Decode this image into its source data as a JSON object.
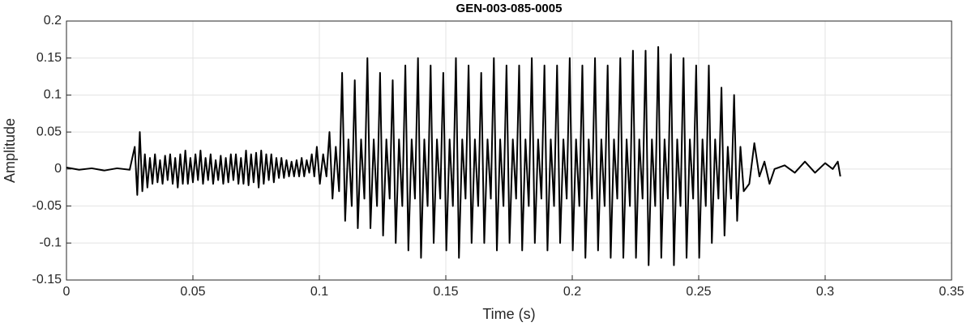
{
  "chart_data": {
    "type": "line",
    "title": "GEN-003-085-0005",
    "x_label": "Time (s)",
    "y_label": "Amplitude",
    "xlim": [
      0,
      0.35
    ],
    "xticks": [
      0,
      0.05,
      0.1,
      0.15,
      0.2,
      0.25,
      0.3,
      0.35
    ],
    "ylim": [
      -0.15,
      0.2
    ],
    "yticks": [
      -0.15,
      -0.1,
      -0.05,
      0,
      0.05,
      0.1,
      0.15,
      0.2
    ],
    "grid": true,
    "series": [
      {
        "color": "#000000",
        "x": [
          0,
          0.005,
          0.01,
          0.015,
          0.02,
          0.025,
          0.027,
          0.028,
          0.029,
          0.03,
          0.031,
          0.032,
          0.033,
          0.034,
          0.035,
          0.036,
          0.037,
          0.038,
          0.039,
          0.04,
          0.041,
          0.042,
          0.043,
          0.044,
          0.045,
          0.046,
          0.047,
          0.048,
          0.049,
          0.05,
          0.051,
          0.052,
          0.053,
          0.054,
          0.055,
          0.056,
          0.057,
          0.058,
          0.059,
          0.06,
          0.061,
          0.062,
          0.063,
          0.064,
          0.065,
          0.066,
          0.067,
          0.068,
          0.069,
          0.07,
          0.071,
          0.072,
          0.073,
          0.074,
          0.075,
          0.076,
          0.077,
          0.078,
          0.079,
          0.08,
          0.081,
          0.082,
          0.083,
          0.084,
          0.085,
          0.086,
          0.087,
          0.088,
          0.089,
          0.09,
          0.091,
          0.092,
          0.093,
          0.094,
          0.095,
          0.096,
          0.097,
          0.098,
          0.099,
          0.1002,
          0.1015,
          0.1028,
          0.104,
          0.1052,
          0.1065,
          0.1078,
          0.109,
          0.1102,
          0.1115,
          0.1128,
          0.114,
          0.1152,
          0.1165,
          0.1178,
          0.119,
          0.1202,
          0.1215,
          0.1228,
          0.124,
          0.1252,
          0.1265,
          0.1278,
          0.129,
          0.1302,
          0.1315,
          0.1328,
          0.134,
          0.1352,
          0.1365,
          0.1378,
          0.139,
          0.1402,
          0.1415,
          0.1428,
          0.144,
          0.1452,
          0.1465,
          0.1478,
          0.149,
          0.1502,
          0.1515,
          0.1528,
          0.154,
          0.1552,
          0.1565,
          0.1578,
          0.159,
          0.1602,
          0.1615,
          0.1628,
          0.164,
          0.1652,
          0.1665,
          0.1678,
          0.169,
          0.1702,
          0.1715,
          0.1728,
          0.174,
          0.1752,
          0.1765,
          0.1778,
          0.179,
          0.1802,
          0.1815,
          0.1828,
          0.184,
          0.1852,
          0.1865,
          0.1878,
          0.189,
          0.1902,
          0.1915,
          0.1928,
          0.194,
          0.1952,
          0.1965,
          0.1978,
          0.199,
          0.2002,
          0.2015,
          0.2028,
          0.204,
          0.2052,
          0.2065,
          0.2078,
          0.209,
          0.2102,
          0.2115,
          0.2128,
          0.214,
          0.2152,
          0.2165,
          0.2178,
          0.219,
          0.2202,
          0.2215,
          0.2228,
          0.224,
          0.2252,
          0.2265,
          0.2278,
          0.229,
          0.2302,
          0.2315,
          0.2328,
          0.234,
          0.2352,
          0.2365,
          0.2378,
          0.239,
          0.2402,
          0.2415,
          0.2428,
          0.244,
          0.2452,
          0.2465,
          0.2478,
          0.249,
          0.2502,
          0.2515,
          0.2528,
          0.254,
          0.2552,
          0.2565,
          0.2578,
          0.259,
          0.2602,
          0.2615,
          0.2628,
          0.264,
          0.2652,
          0.2665,
          0.2678,
          0.27,
          0.272,
          0.274,
          0.276,
          0.278,
          0.28,
          0.284,
          0.288,
          0.292,
          0.296,
          0.3,
          0.303,
          0.305,
          0.306
        ],
        "values": [
          0.002,
          -0.001,
          0.001,
          -0.002,
          0.001,
          -0.001,
          0.03,
          -0.035,
          0.05,
          -0.03,
          0.02,
          -0.025,
          0.015,
          -0.02,
          0.02,
          -0.018,
          0.012,
          -0.02,
          0.018,
          -0.015,
          0.02,
          -0.02,
          0.015,
          -0.025,
          0.02,
          -0.02,
          0.025,
          -0.02,
          0.015,
          -0.018,
          0.02,
          -0.015,
          0.025,
          -0.02,
          0.015,
          -0.015,
          0.02,
          -0.02,
          0.012,
          -0.015,
          0.018,
          -0.02,
          0.015,
          -0.018,
          0.02,
          -0.015,
          0.02,
          -0.02,
          0.015,
          -0.02,
          0.025,
          -0.022,
          0.02,
          -0.018,
          0.022,
          -0.025,
          0.025,
          -0.02,
          0.02,
          -0.015,
          0.02,
          -0.018,
          0.015,
          -0.012,
          0.015,
          -0.012,
          0.012,
          -0.01,
          0.01,
          -0.01,
          0.012,
          -0.01,
          0.015,
          -0.01,
          0.012,
          -0.005,
          0.02,
          -0.01,
          0.03,
          -0.02,
          0.02,
          -0.01,
          0.05,
          -0.04,
          0.03,
          -0.03,
          0.13,
          -0.07,
          0.04,
          -0.05,
          0.12,
          -0.08,
          0.04,
          -0.04,
          0.15,
          -0.08,
          0.04,
          -0.05,
          0.13,
          -0.09,
          0.04,
          -0.04,
          0.12,
          -0.1,
          0.04,
          -0.05,
          0.14,
          -0.11,
          0.04,
          -0.04,
          0.15,
          -0.12,
          0.04,
          -0.05,
          0.14,
          -0.1,
          0.04,
          -0.04,
          0.13,
          -0.11,
          0.04,
          -0.05,
          0.15,
          -0.12,
          0.04,
          -0.04,
          0.14,
          -0.1,
          0.04,
          -0.05,
          0.13,
          -0.1,
          0.04,
          -0.04,
          0.15,
          -0.11,
          0.04,
          -0.05,
          0.14,
          -0.1,
          0.04,
          -0.04,
          0.14,
          -0.11,
          0.04,
          -0.05,
          0.15,
          -0.1,
          0.04,
          -0.04,
          0.14,
          -0.11,
          0.04,
          -0.05,
          0.14,
          -0.1,
          0.04,
          -0.04,
          0.15,
          -0.11,
          0.04,
          -0.05,
          0.14,
          -0.12,
          0.04,
          -0.04,
          0.15,
          -0.11,
          0.04,
          -0.05,
          0.14,
          -0.12,
          0.04,
          -0.04,
          0.15,
          -0.12,
          0.04,
          -0.05,
          0.16,
          -0.12,
          0.04,
          -0.04,
          0.16,
          -0.13,
          0.04,
          -0.05,
          0.165,
          -0.12,
          0.04,
          -0.04,
          0.155,
          -0.13,
          0.04,
          -0.05,
          0.15,
          -0.12,
          0.04,
          -0.04,
          0.14,
          -0.12,
          0.04,
          -0.05,
          0.14,
          -0.1,
          0.04,
          -0.04,
          0.11,
          -0.09,
          0.03,
          -0.04,
          0.1,
          -0.07,
          0.03,
          -0.03,
          -0.02,
          0.035,
          -0.01,
          0.01,
          -0.02,
          0,
          0.005,
          -0.005,
          0.01,
          -0.005,
          0.008,
          0,
          0.01,
          -0.01
        ]
      }
    ]
  }
}
